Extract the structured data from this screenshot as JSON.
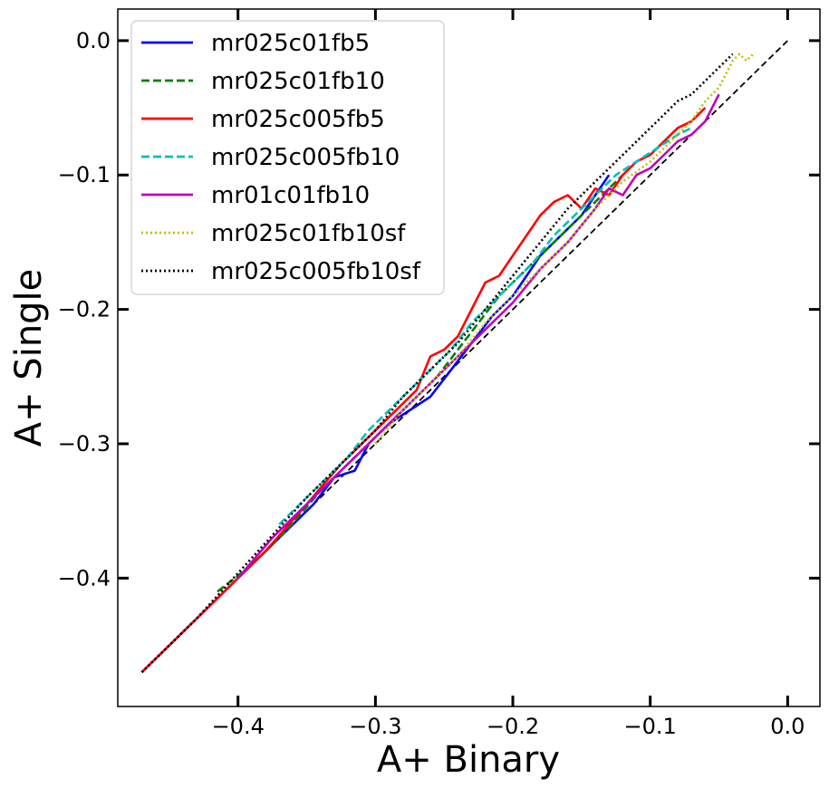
{
  "chart_data": {
    "type": "line",
    "title": "",
    "xlabel": "A+ Binary",
    "ylabel": "A+ Single",
    "xlim": [
      -0.4875,
      0.0235
    ],
    "ylim": [
      -0.4955,
      0.0235
    ],
    "x_ticks": [
      -0.4,
      -0.3,
      -0.2,
      -0.1,
      0.0
    ],
    "y_ticks": [
      0.0,
      -0.1,
      -0.2,
      -0.3,
      -0.4
    ],
    "x_tick_labels": [
      "−0.4",
      "−0.3",
      "−0.2",
      "−0.1",
      "0.0"
    ],
    "y_tick_labels": [
      "0.0",
      "−0.1",
      "−0.2",
      "−0.3",
      "−0.4"
    ],
    "grid": false,
    "legend_position": "top-left",
    "reference_line": {
      "x": [
        -0.47,
        0.0
      ],
      "y": [
        -0.47,
        0.0
      ],
      "color": "#000000",
      "style": "dashed"
    },
    "series": [
      {
        "name": "mr025c01fb5",
        "color": "#0000ff",
        "style": "solid",
        "x": [
          -0.47,
          -0.41,
          -0.37,
          -0.345,
          -0.33,
          -0.315,
          -0.305,
          -0.29,
          -0.275,
          -0.26,
          -0.245,
          -0.23,
          -0.215,
          -0.2,
          -0.19,
          -0.18,
          -0.17,
          -0.16,
          -0.15,
          -0.14,
          -0.13
        ],
        "y": [
          -0.47,
          -0.41,
          -0.37,
          -0.345,
          -0.325,
          -0.32,
          -0.3,
          -0.285,
          -0.275,
          -0.265,
          -0.245,
          -0.225,
          -0.205,
          -0.19,
          -0.175,
          -0.16,
          -0.15,
          -0.14,
          -0.13,
          -0.115,
          -0.1
        ]
      },
      {
        "name": "mr025c01fb10",
        "color": "#008000",
        "style": "dashed",
        "x": [
          -0.415,
          -0.39,
          -0.365,
          -0.34,
          -0.315,
          -0.3,
          -0.285,
          -0.27,
          -0.255,
          -0.24,
          -0.225,
          -0.21,
          -0.195,
          -0.18,
          -0.165,
          -0.15,
          -0.135,
          -0.12
        ],
        "y": [
          -0.41,
          -0.39,
          -0.365,
          -0.335,
          -0.31,
          -0.295,
          -0.28,
          -0.265,
          -0.25,
          -0.23,
          -0.21,
          -0.19,
          -0.175,
          -0.16,
          -0.145,
          -0.13,
          -0.115,
          -0.1
        ]
      },
      {
        "name": "mr025c005fb5",
        "color": "#ff0000",
        "style": "solid",
        "x": [
          -0.47,
          -0.42,
          -0.38,
          -0.35,
          -0.325,
          -0.315,
          -0.3,
          -0.285,
          -0.27,
          -0.26,
          -0.25,
          -0.24,
          -0.23,
          -0.22,
          -0.21,
          -0.2,
          -0.19,
          -0.18,
          -0.17,
          -0.16,
          -0.15,
          -0.14,
          -0.13,
          -0.12,
          -0.11,
          -0.1,
          -0.09,
          -0.08,
          -0.07,
          -0.06
        ],
        "y": [
          -0.47,
          -0.42,
          -0.38,
          -0.345,
          -0.315,
          -0.305,
          -0.29,
          -0.275,
          -0.26,
          -0.235,
          -0.23,
          -0.22,
          -0.2,
          -0.18,
          -0.175,
          -0.16,
          -0.145,
          -0.13,
          -0.12,
          -0.115,
          -0.125,
          -0.11,
          -0.115,
          -0.1,
          -0.09,
          -0.085,
          -0.075,
          -0.065,
          -0.06,
          -0.05
        ]
      },
      {
        "name": "mr025c005fb10",
        "color": "#00bfbf",
        "style": "dashed",
        "x": [
          -0.37,
          -0.35,
          -0.335,
          -0.32,
          -0.305,
          -0.29,
          -0.275,
          -0.26,
          -0.245,
          -0.23,
          -0.215,
          -0.2,
          -0.185,
          -0.17,
          -0.155,
          -0.14,
          -0.125,
          -0.11,
          -0.095,
          -0.08,
          -0.07
        ],
        "y": [
          -0.36,
          -0.34,
          -0.325,
          -0.31,
          -0.29,
          -0.275,
          -0.26,
          -0.245,
          -0.23,
          -0.21,
          -0.195,
          -0.18,
          -0.165,
          -0.145,
          -0.13,
          -0.115,
          -0.1,
          -0.09,
          -0.08,
          -0.07,
          -0.065
        ]
      },
      {
        "name": "mr01c01fb10",
        "color": "#bf00bf",
        "style": "solid",
        "x": [
          -0.4,
          -0.375,
          -0.35,
          -0.325,
          -0.305,
          -0.285,
          -0.27,
          -0.255,
          -0.24,
          -0.22,
          -0.2,
          -0.18,
          -0.16,
          -0.14,
          -0.13,
          -0.12,
          -0.11,
          -0.1,
          -0.09,
          -0.08,
          -0.07,
          -0.06,
          -0.05
        ],
        "y": [
          -0.4,
          -0.37,
          -0.345,
          -0.32,
          -0.3,
          -0.28,
          -0.265,
          -0.25,
          -0.235,
          -0.215,
          -0.195,
          -0.17,
          -0.15,
          -0.125,
          -0.11,
          -0.115,
          -0.1,
          -0.095,
          -0.085,
          -0.075,
          -0.07,
          -0.06,
          -0.04
        ]
      },
      {
        "name": "mr025c01fb10sf",
        "color": "#bfbf00",
        "style": "dotted",
        "x": [
          -0.3,
          -0.28,
          -0.26,
          -0.24,
          -0.22,
          -0.2,
          -0.18,
          -0.16,
          -0.14,
          -0.12,
          -0.1,
          -0.09,
          -0.08,
          -0.07,
          -0.06,
          -0.05,
          -0.045,
          -0.04,
          -0.035,
          -0.03,
          -0.025
        ],
        "y": [
          -0.3,
          -0.275,
          -0.255,
          -0.235,
          -0.21,
          -0.19,
          -0.17,
          -0.15,
          -0.125,
          -0.105,
          -0.09,
          -0.08,
          -0.07,
          -0.06,
          -0.045,
          -0.035,
          -0.025,
          -0.015,
          -0.01,
          -0.015,
          -0.01
        ]
      },
      {
        "name": "mr025c005fb10sf",
        "color": "#000000",
        "style": "dotted",
        "x": [
          -0.47,
          -0.43,
          -0.39,
          -0.35,
          -0.32,
          -0.3,
          -0.28,
          -0.26,
          -0.24,
          -0.22,
          -0.2,
          -0.18,
          -0.16,
          -0.14,
          -0.12,
          -0.1,
          -0.09,
          -0.08,
          -0.07,
          -0.06,
          -0.055,
          -0.05,
          -0.045,
          -0.04
        ],
        "y": [
          -0.47,
          -0.43,
          -0.385,
          -0.34,
          -0.31,
          -0.29,
          -0.265,
          -0.245,
          -0.225,
          -0.2,
          -0.175,
          -0.15,
          -0.125,
          -0.105,
          -0.085,
          -0.065,
          -0.055,
          -0.045,
          -0.04,
          -0.03,
          -0.025,
          -0.02,
          -0.015,
          -0.01
        ]
      }
    ]
  }
}
